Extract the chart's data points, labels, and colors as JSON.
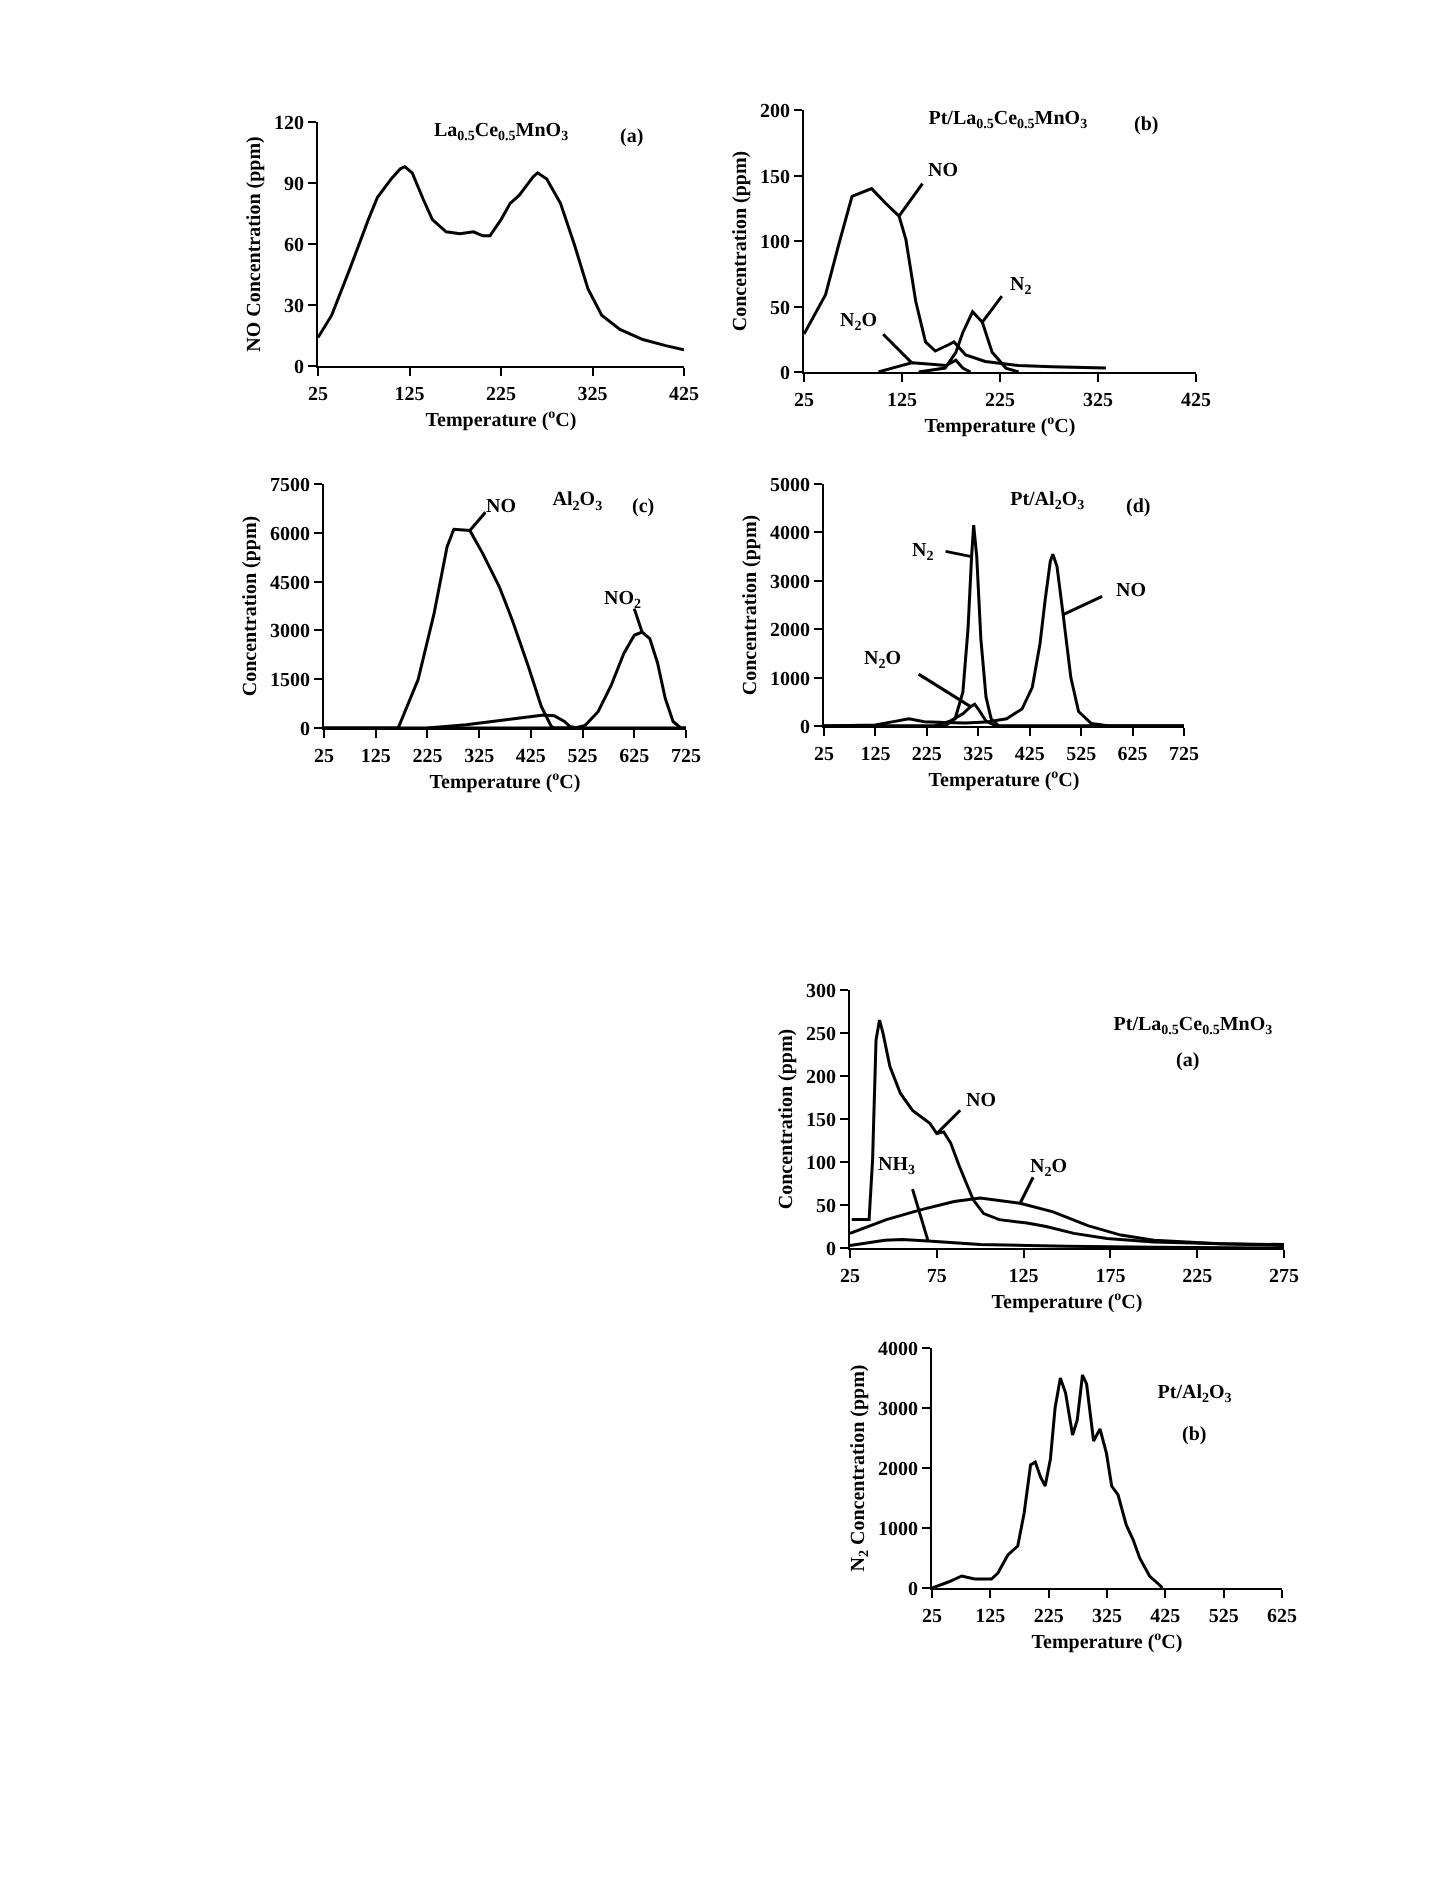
{
  "chart_data": [
    {
      "type": "line",
      "title": "La$_{0.5}$Ce$_{0.5}$MnO$_{3}$",
      "annotations": [
        "(a)"
      ],
      "xlabel": "Temperature ($^{o}$C)",
      "ylabel": "NO Concentration (ppm)",
      "xlim": [
        25,
        425
      ],
      "xticks": [
        25,
        125,
        225,
        325,
        425
      ],
      "ylim": [
        0,
        120
      ],
      "yticks": [
        0,
        30,
        60,
        90,
        120
      ],
      "x": [
        25,
        40,
        60,
        80,
        90,
        105,
        115,
        120,
        128,
        140,
        150,
        165,
        180,
        195,
        205,
        213,
        225,
        235,
        245,
        260,
        265,
        275,
        290,
        305,
        320,
        335,
        355,
        380,
        405,
        425
      ],
      "series": [
        {
          "color": "#000000",
          "values": [
            14,
            25,
            48,
            72,
            83,
            92,
            97,
            98,
            95,
            82,
            72,
            66,
            65,
            66,
            64,
            64,
            72,
            80,
            84,
            93,
            95,
            92,
            80,
            60,
            38,
            25,
            18,
            13,
            10,
            8
          ]
        }
      ]
    },
    {
      "type": "line",
      "title": "Pt/La$_{0.5}$Ce$_{0.5}$MnO$_{3}$",
      "annotations": [
        "(b)"
      ],
      "xlabel": "Temperature ($^{o}$C)",
      "ylabel": "Concentration (ppm)",
      "xlim": [
        25,
        425
      ],
      "xticks": [
        25,
        125,
        225,
        325,
        425
      ],
      "ylim": [
        0,
        200
      ],
      "yticks": [
        0,
        50,
        100,
        150,
        200
      ],
      "series": [
        {
          "name": "NO",
          "color": "#000000",
          "x": [
            25,
            47,
            60,
            74,
            94,
            108,
            122,
            129,
            139,
            149,
            159,
            173,
            178,
            190,
            210,
            244,
            278,
            333
          ],
          "values": [
            29,
            59,
            96,
            134,
            140,
            129,
            119,
            101,
            54,
            23,
            16,
            21,
            23,
            13,
            8,
            5,
            4,
            3
          ]
        },
        {
          "name": "N$_{2}$",
          "color": "#000000",
          "x": [
            142,
            169,
            180,
            187,
            197,
            207,
            217,
            231,
            244
          ],
          "values": [
            0,
            3,
            15,
            30,
            46,
            38,
            15,
            3,
            0
          ]
        },
        {
          "name": "N$_{2}$O",
          "color": "#000000",
          "x": [
            101,
            115,
            135,
            155,
            170,
            180,
            187,
            195
          ],
          "values": [
            0,
            3,
            7,
            6,
            5,
            9,
            3,
            0
          ]
        }
      ]
    },
    {
      "type": "line",
      "title": "Al$_{2}$O$_{3}$",
      "annotations": [
        "(c)"
      ],
      "xlabel": "Temperature ($^{o}$C)",
      "ylabel": "Concentration (ppm)",
      "xlim": [
        25,
        725
      ],
      "xticks": [
        25,
        125,
        225,
        325,
        425,
        525,
        625,
        725
      ],
      "ylim": [
        0,
        7500
      ],
      "yticks": [
        0,
        1500,
        3000,
        4500,
        6000,
        7500
      ],
      "series": [
        {
          "name": "NO",
          "color": "#000000",
          "x": [
            25,
            165,
            169,
            207,
            238,
            263,
            276,
            307,
            332,
            364,
            389,
            420,
            445,
            464,
            470,
            725
          ],
          "values": [
            0,
            0,
            20,
            1490,
            3530,
            5570,
            6110,
            6070,
            5360,
            4340,
            3320,
            1900,
            670,
            60,
            0,
            0
          ]
        },
        {
          "name": "NO$_{2}$",
          "color": "#000000",
          "x": [
            25,
            510,
            530,
            555,
            580,
            605,
            625,
            640,
            655,
            670,
            685,
            700,
            715,
            725
          ],
          "values": [
            0,
            0,
            80,
            500,
            1300,
            2300,
            2850,
            2950,
            2750,
            2000,
            900,
            200,
            0,
            0
          ]
        },
        {
          "color": "#000000",
          "x": [
            225,
            300,
            350,
            400,
            450,
            470,
            490,
            500,
            515
          ],
          "values": [
            0,
            100,
            200,
            300,
            400,
            380,
            200,
            50,
            0
          ]
        }
      ]
    },
    {
      "type": "line",
      "title": "Pt/Al$_{2}$O$_{3}$",
      "annotations": [
        "(d)"
      ],
      "xlabel": "Temperature ($^{o}$C)",
      "ylabel": "Concentration (ppm)",
      "xlim": [
        25,
        725
      ],
      "xticks": [
        25,
        125,
        225,
        325,
        425,
        525,
        625,
        725
      ],
      "ylim": [
        0,
        5000
      ],
      "yticks": [
        0,
        1000,
        2000,
        3000,
        4000,
        5000
      ],
      "series": [
        {
          "name": "NO",
          "color": "#000000",
          "x": [
            25,
            125,
            160,
            190,
            220,
            260,
            300,
            340,
            380,
            410,
            430,
            445,
            455,
            465,
            470,
            478,
            490,
            505,
            520,
            545,
            580,
            725
          ],
          "values": [
            0,
            20,
            90,
            150,
            90,
            70,
            60,
            80,
            150,
            350,
            800,
            1700,
            2600,
            3400,
            3550,
            3300,
            2300,
            1000,
            300,
            50,
            0,
            0
          ]
        },
        {
          "name": "N$_{2}$",
          "color": "#000000",
          "x": [
            25,
            260,
            280,
            295,
            305,
            312,
            316,
            322,
            330,
            340,
            350,
            365,
            725
          ],
          "values": [
            0,
            0,
            150,
            700,
            2000,
            3500,
            4150,
            3500,
            1800,
            600,
            150,
            0,
            0
          ]
        },
        {
          "name": "N$_{2}$O",
          "color": "#000000",
          "x": [
            25,
            240,
            270,
            295,
            310,
            318,
            325,
            340,
            360,
            725
          ],
          "values": [
            0,
            0,
            100,
            250,
            400,
            450,
            350,
            100,
            0,
            0
          ]
        }
      ]
    },
    {
      "type": "line",
      "title": "Pt/La$_{0.5}$Ce$_{0.5}$MnO$_{3}$",
      "annotations": [
        "(a)"
      ],
      "xlabel": "Temperature ($^{o}$C)",
      "ylabel": "Concentration (ppm)",
      "xlim": [
        25,
        275
      ],
      "xticks": [
        25,
        75,
        125,
        175,
        225,
        275
      ],
      "ylim": [
        0,
        300
      ],
      "yticks": [
        0,
        50,
        100,
        150,
        200,
        250,
        300
      ],
      "series": [
        {
          "name": "NO",
          "color": "#000000",
          "x": [
            26,
            36,
            38,
            40,
            42,
            44,
            48,
            54,
            61,
            71,
            75,
            79,
            83,
            88,
            96,
            102,
            111,
            127,
            138,
            154,
            173,
            200,
            238,
            275
          ],
          "values": [
            33,
            33,
            102,
            242,
            265,
            250,
            211,
            180,
            160,
            145,
            133,
            135,
            122,
            95,
            56,
            40,
            33,
            29,
            25,
            17,
            11,
            7,
            5,
            3
          ]
        },
        {
          "name": "N$_{2}$O",
          "color": "#000000",
          "x": [
            25,
            46,
            65,
            85,
            100,
            123,
            142,
            162,
            181,
            200,
            238,
            275
          ],
          "values": [
            17,
            33,
            44,
            54,
            58,
            52,
            42,
            26,
            15,
            9,
            5,
            4
          ]
        },
        {
          "name": "NH$_{3}$",
          "color": "#000000",
          "x": [
            25,
            45,
            55,
            70,
            100,
            150,
            200,
            275
          ],
          "values": [
            3,
            9,
            10,
            8,
            4,
            2,
            1,
            0
          ]
        }
      ]
    },
    {
      "type": "line",
      "title": "Pt/Al$_{2}$O$_{3}$",
      "annotations": [
        "(b)"
      ],
      "xlabel": "Temperature ($^{o}$C)",
      "ylabel": "N$_{2}$ Concentration (ppm)",
      "xlim": [
        25,
        625
      ],
      "xticks": [
        25,
        125,
        225,
        325,
        425,
        525,
        625
      ],
      "ylim": [
        0,
        4000
      ],
      "yticks": [
        0,
        1000,
        2000,
        3000,
        4000
      ],
      "x": [
        25,
        53,
        76,
        98,
        127,
        138,
        155,
        172,
        183,
        194,
        202,
        211,
        219,
        228,
        236,
        245,
        254,
        266,
        274,
        283,
        290,
        302,
        313,
        324,
        333,
        344,
        358,
        370,
        381,
        398,
        415,
        420
      ],
      "series": [
        {
          "color": "#000000",
          "values": [
            0,
            100,
            200,
            150,
            150,
            250,
            550,
            700,
            1250,
            2050,
            2100,
            1850,
            1700,
            2150,
            3000,
            3500,
            3250,
            2550,
            2800,
            3550,
            3400,
            2450,
            2650,
            2250,
            1700,
            1550,
            1050,
            800,
            500,
            200,
            50,
            0
          ]
        }
      ]
    }
  ]
}
